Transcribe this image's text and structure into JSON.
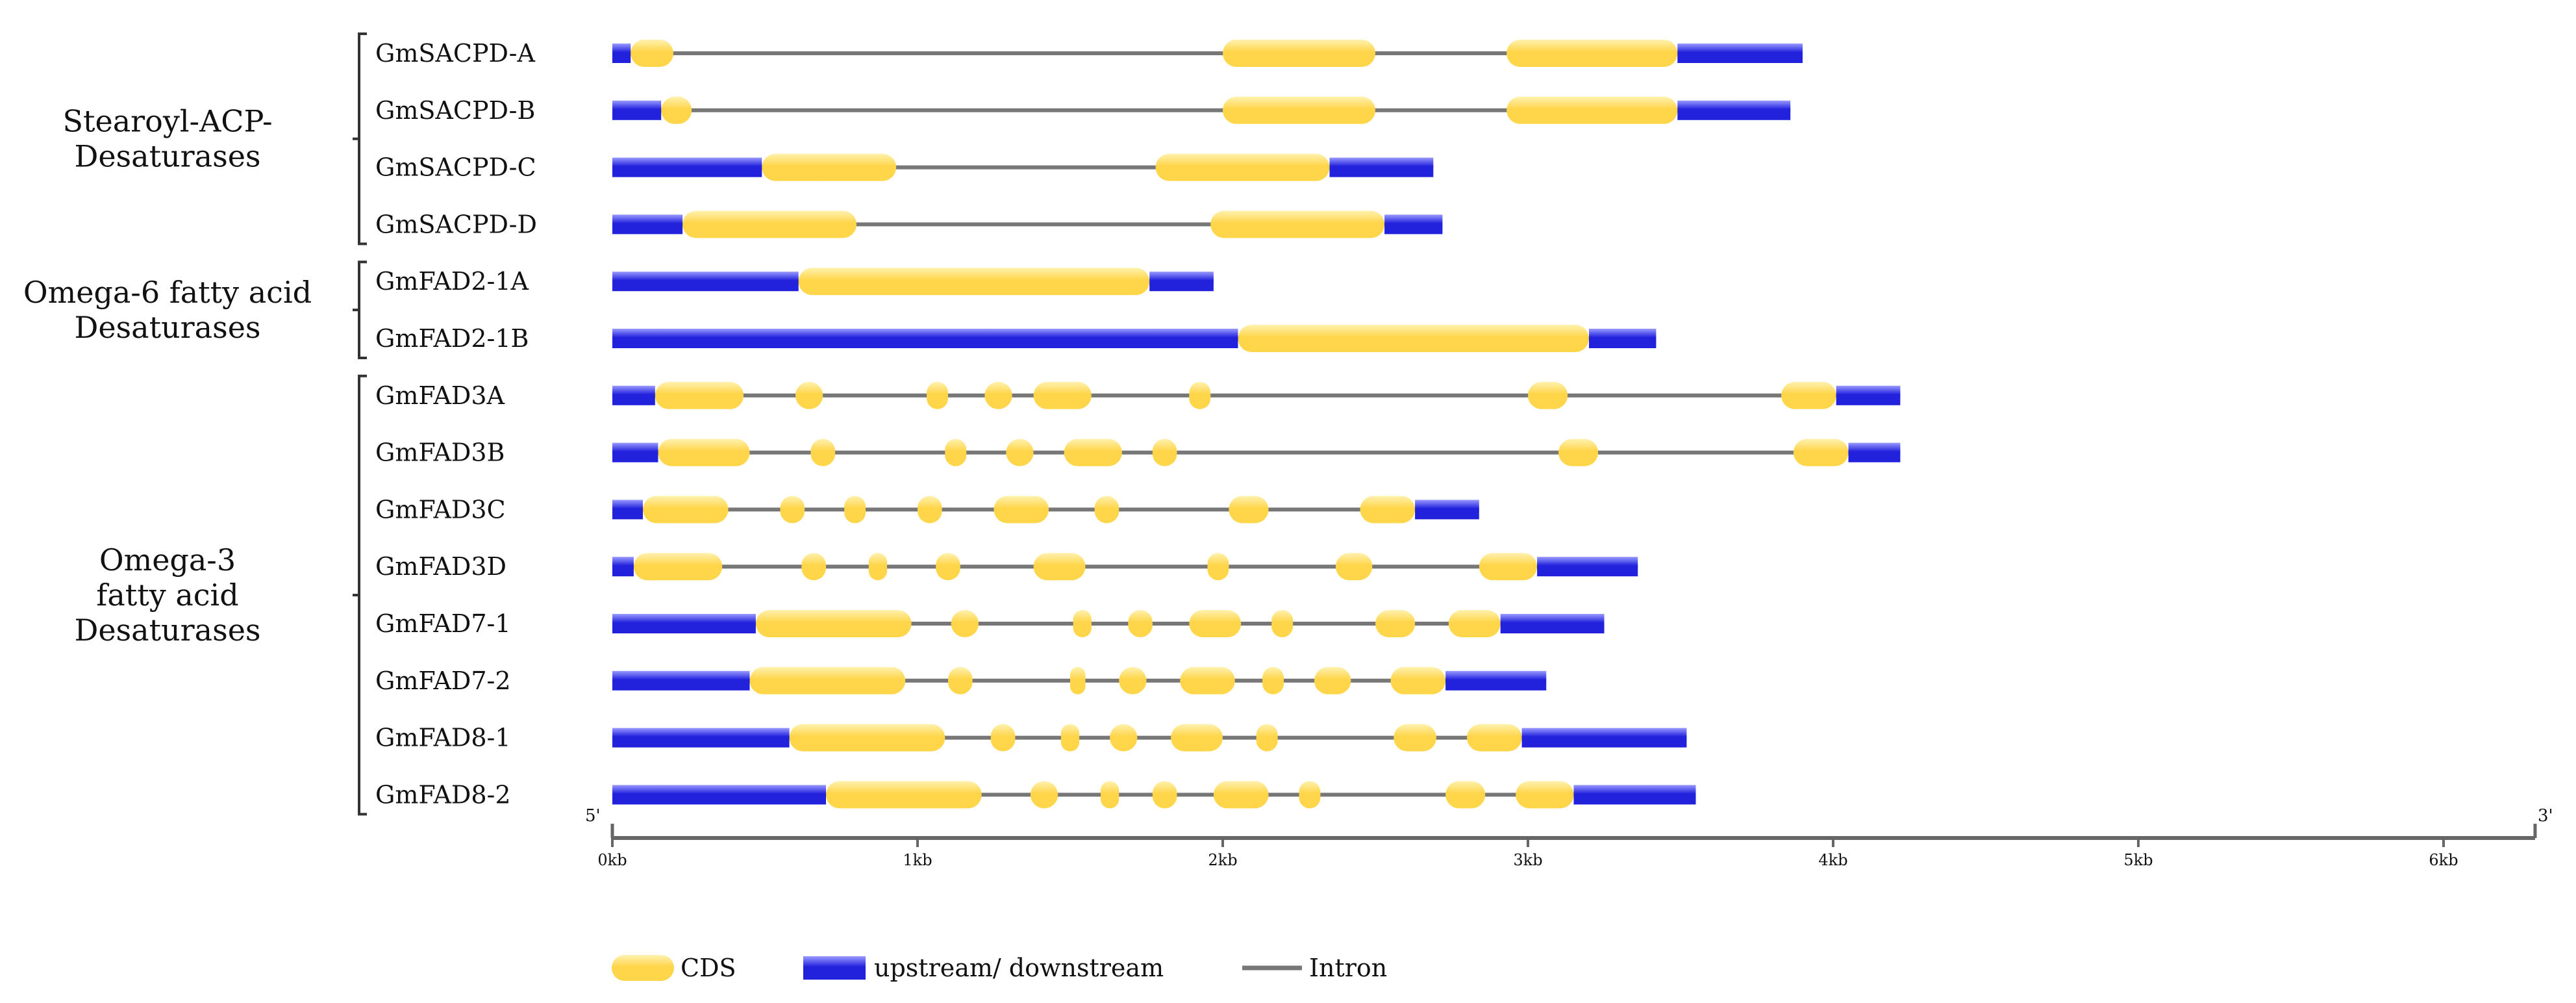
{
  "groups": [
    {
      "label_lines": [
        "Stearoyl-ACP-",
        "Desaturases"
      ],
      "first_gene": 0,
      "last_gene": 3
    },
    {
      "label_lines": [
        "Omega-6 fatty acid",
        "Desaturases"
      ],
      "first_gene": 4,
      "last_gene": 5
    },
    {
      "label_lines": [
        "Omega-3",
        "fatty acid",
        "Desaturases"
      ],
      "first_gene": 6,
      "last_gene": 13
    }
  ],
  "genes": [
    {
      "name": "GmSACPD-A",
      "length": 3.9,
      "features": [
        [
          "u",
          0,
          0.06
        ],
        [
          "c",
          0.06,
          0.2
        ],
        [
          "c",
          2.0,
          2.5
        ],
        [
          "c",
          2.93,
          3.49
        ],
        [
          "u",
          3.49,
          3.9
        ]
      ]
    },
    {
      "name": "GmSACPD-B",
      "length": 3.86,
      "features": [
        [
          "u",
          0,
          0.16
        ],
        [
          "c",
          0.16,
          0.26
        ],
        [
          "c",
          2.0,
          2.5
        ],
        [
          "c",
          2.93,
          3.49
        ],
        [
          "u",
          3.49,
          3.86
        ]
      ]
    },
    {
      "name": "GmSACPD-C",
      "length": 2.69,
      "features": [
        [
          "u",
          0,
          0.49
        ],
        [
          "c",
          0.49,
          0.93
        ],
        [
          "c",
          1.78,
          2.35
        ],
        [
          "u",
          2.35,
          2.69
        ]
      ]
    },
    {
      "name": "GmSACPD-D",
      "length": 2.72,
      "features": [
        [
          "u",
          0,
          0.23
        ],
        [
          "c",
          0.23,
          0.8
        ],
        [
          "c",
          1.96,
          2.53
        ],
        [
          "u",
          2.53,
          2.72
        ]
      ]
    },
    {
      "name": "GmFAD2-1A",
      "length": 1.97,
      "features": [
        [
          "u",
          0,
          0.61
        ],
        [
          "c",
          0.61,
          1.76
        ],
        [
          "u",
          1.76,
          1.97
        ]
      ]
    },
    {
      "name": "GmFAD2-1B",
      "length": 3.42,
      "features": [
        [
          "u",
          0,
          2.05
        ],
        [
          "c",
          2.05,
          3.2
        ],
        [
          "u",
          3.2,
          3.42
        ]
      ]
    },
    {
      "name": "GmFAD3A",
      "length": 4.22,
      "features": [
        [
          "u",
          0,
          0.14
        ],
        [
          "c",
          0.14,
          0.43
        ],
        [
          "c",
          0.6,
          0.69
        ],
        [
          "c",
          1.03,
          1.1
        ],
        [
          "c",
          1.22,
          1.31
        ],
        [
          "c",
          1.38,
          1.57
        ],
        [
          "c",
          1.89,
          1.96
        ],
        [
          "c",
          3.0,
          3.13
        ],
        [
          "c",
          3.83,
          4.01
        ],
        [
          "u",
          4.01,
          4.22
        ]
      ]
    },
    {
      "name": "GmFAD3B",
      "length": 4.22,
      "features": [
        [
          "u",
          0,
          0.15
        ],
        [
          "c",
          0.15,
          0.45
        ],
        [
          "c",
          0.65,
          0.73
        ],
        [
          "c",
          1.09,
          1.16
        ],
        [
          "c",
          1.29,
          1.38
        ],
        [
          "c",
          1.48,
          1.67
        ],
        [
          "c",
          1.77,
          1.85
        ],
        [
          "c",
          3.1,
          3.23
        ],
        [
          "c",
          3.87,
          4.05
        ],
        [
          "u",
          4.05,
          4.22
        ]
      ]
    },
    {
      "name": "GmFAD3C",
      "length": 2.84,
      "features": [
        [
          "u",
          0,
          0.1
        ],
        [
          "c",
          0.1,
          0.38
        ],
        [
          "c",
          0.55,
          0.63
        ],
        [
          "c",
          0.76,
          0.83
        ],
        [
          "c",
          1.0,
          1.08
        ],
        [
          "c",
          1.25,
          1.43
        ],
        [
          "c",
          1.58,
          1.66
        ],
        [
          "c",
          2.02,
          2.15
        ],
        [
          "c",
          2.45,
          2.63
        ],
        [
          "u",
          2.63,
          2.84
        ]
      ]
    },
    {
      "name": "GmFAD3D",
      "length": 3.36,
      "features": [
        [
          "u",
          0,
          0.07
        ],
        [
          "c",
          0.07,
          0.36
        ],
        [
          "c",
          0.62,
          0.7
        ],
        [
          "c",
          0.84,
          0.9
        ],
        [
          "c",
          1.06,
          1.14
        ],
        [
          "c",
          1.38,
          1.55
        ],
        [
          "c",
          1.95,
          2.02
        ],
        [
          "c",
          2.37,
          2.49
        ],
        [
          "c",
          2.84,
          3.03
        ],
        [
          "u",
          3.03,
          3.36
        ]
      ]
    },
    {
      "name": "GmFAD7-1",
      "length": 3.25,
      "features": [
        [
          "u",
          0,
          0.47
        ],
        [
          "c",
          0.47,
          0.98
        ],
        [
          "c",
          1.11,
          1.2
        ],
        [
          "c",
          1.51,
          1.57
        ],
        [
          "c",
          1.69,
          1.77
        ],
        [
          "c",
          1.89,
          2.06
        ],
        [
          "c",
          2.16,
          2.23
        ],
        [
          "c",
          2.5,
          2.63
        ],
        [
          "c",
          2.74,
          2.91
        ],
        [
          "u",
          2.91,
          3.25
        ]
      ]
    },
    {
      "name": "GmFAD7-2",
      "length": 3.06,
      "features": [
        [
          "u",
          0,
          0.45
        ],
        [
          "c",
          0.45,
          0.96
        ],
        [
          "c",
          1.1,
          1.18
        ],
        [
          "c",
          1.5,
          1.55
        ],
        [
          "c",
          1.66,
          1.75
        ],
        [
          "c",
          1.86,
          2.04
        ],
        [
          "c",
          2.13,
          2.2
        ],
        [
          "c",
          2.3,
          2.42
        ],
        [
          "c",
          2.55,
          2.73
        ],
        [
          "u",
          2.73,
          3.06
        ]
      ]
    },
    {
      "name": "GmFAD8-1",
      "length": 3.52,
      "features": [
        [
          "u",
          0,
          0.58
        ],
        [
          "c",
          0.58,
          1.09
        ],
        [
          "c",
          1.24,
          1.32
        ],
        [
          "c",
          1.47,
          1.53
        ],
        [
          "c",
          1.63,
          1.72
        ],
        [
          "c",
          1.83,
          2.0
        ],
        [
          "c",
          2.11,
          2.18
        ],
        [
          "c",
          2.56,
          2.7
        ],
        [
          "c",
          2.8,
          2.98
        ],
        [
          "u",
          2.98,
          3.52
        ]
      ]
    },
    {
      "name": "GmFAD8-2",
      "length": 3.55,
      "features": [
        [
          "u",
          0,
          0.7
        ],
        [
          "c",
          0.7,
          1.21
        ],
        [
          "c",
          1.37,
          1.46
        ],
        [
          "c",
          1.6,
          1.66
        ],
        [
          "c",
          1.77,
          1.85
        ],
        [
          "c",
          1.97,
          2.15
        ],
        [
          "c",
          2.25,
          2.32
        ],
        [
          "c",
          2.73,
          2.86
        ],
        [
          "c",
          2.96,
          3.15
        ],
        [
          "u",
          3.15,
          3.55
        ]
      ]
    }
  ],
  "axis": {
    "unit": "kb",
    "min": 0,
    "max": 6.3,
    "ticks": [
      0,
      1,
      2,
      3,
      4,
      5,
      6
    ],
    "tick_labels": [
      "0kb",
      "1kb",
      "2kb",
      "3kb",
      "4kb",
      "5kb",
      "6kb"
    ],
    "start_label": "5'",
    "end_label": "3'"
  },
  "legend": {
    "cds_label": "CDS",
    "utr_label": "upstream/ downstream",
    "intron_label": "Intron"
  },
  "colors": {
    "cds_fill": "#ffd54a",
    "cds_highlight": "#fff2b0",
    "utr_fill": "#2222dd",
    "utr_highlight": "#9a9aff",
    "intron": "#777777",
    "axis": "#666666",
    "text": "#111111"
  }
}
